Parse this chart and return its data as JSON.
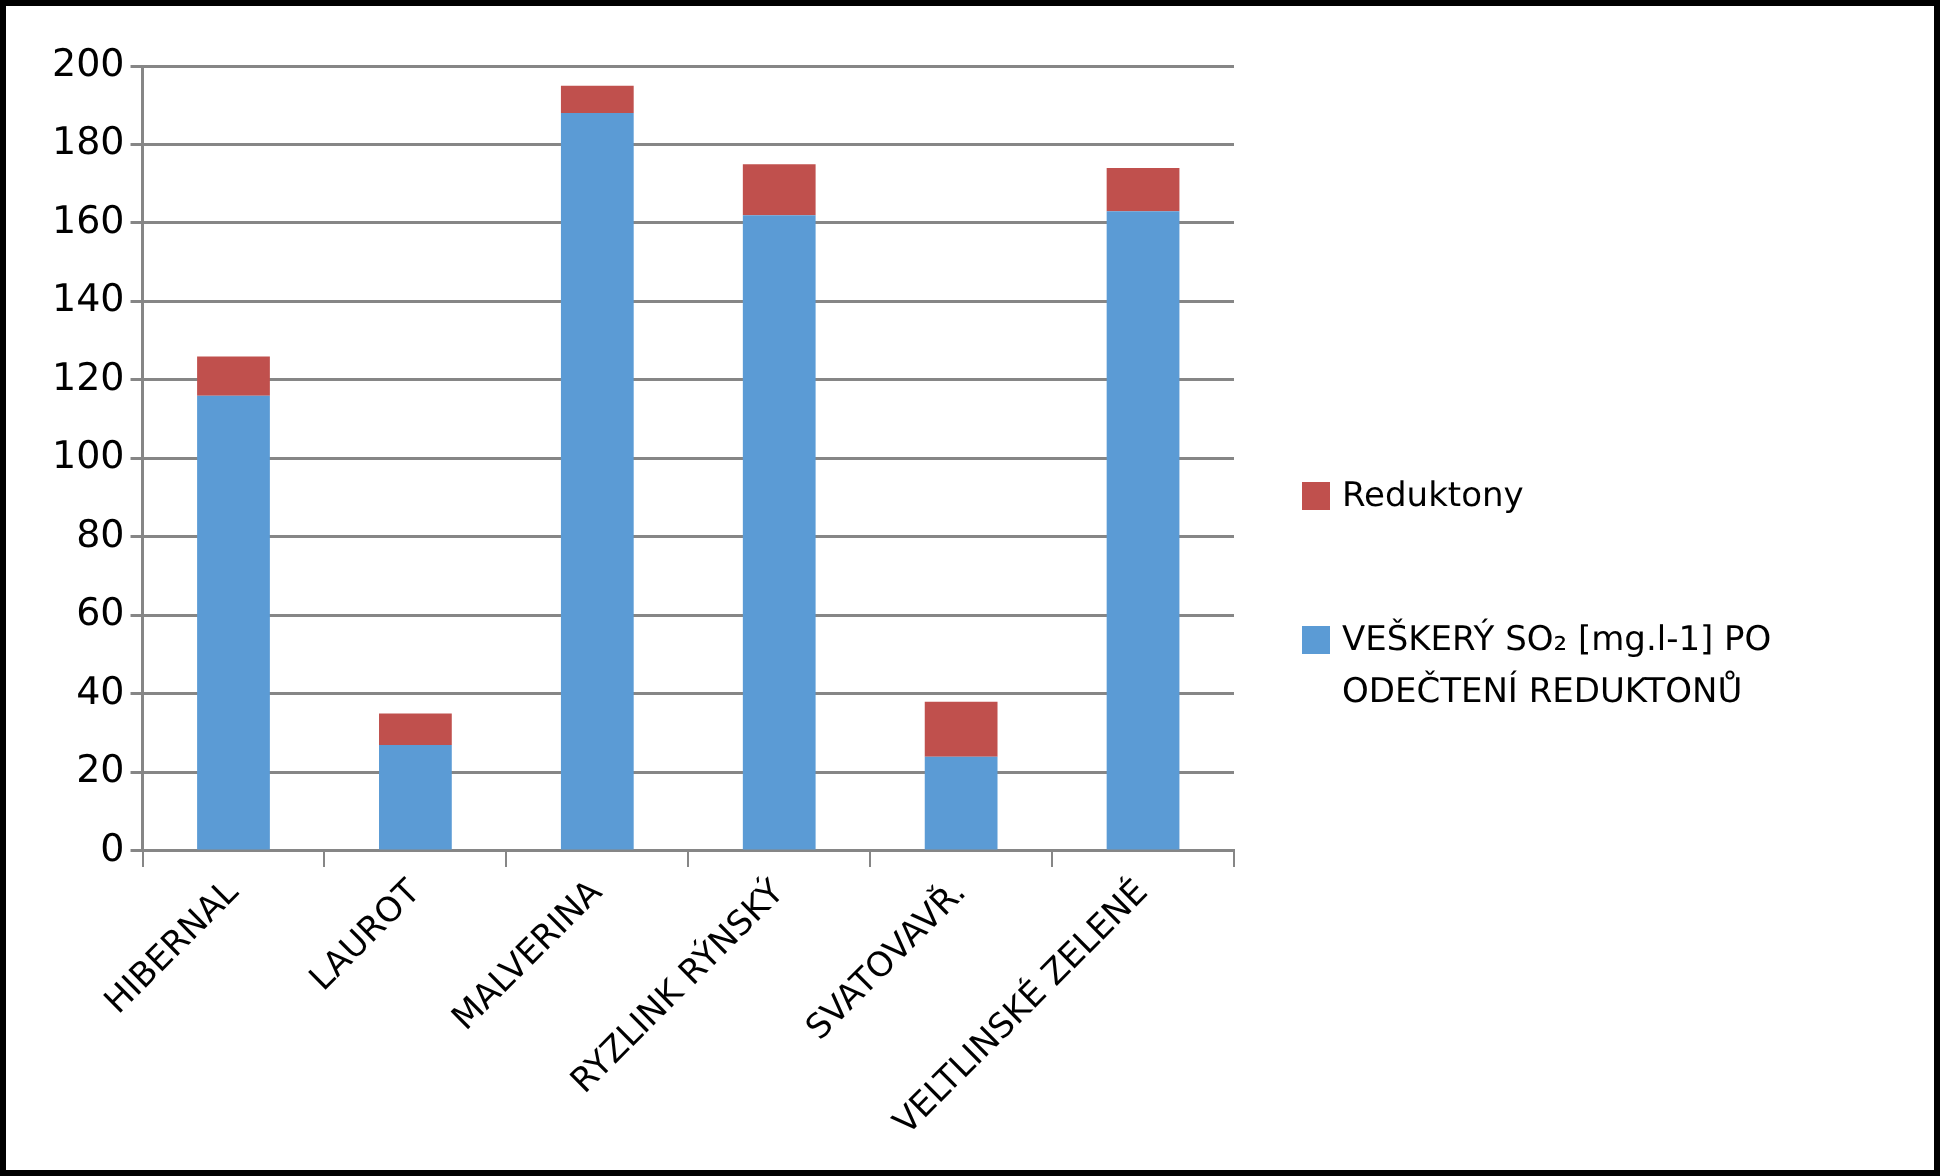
{
  "chart_data": {
    "type": "bar",
    "stacked": true,
    "categories": [
      "HIBERNAL",
      "LAUROT",
      "MALVERINA",
      "RYZLINK RÝNSKÝ",
      "SVATOVAVŘ.",
      "VELTLINSKÉ ZELENÉ"
    ],
    "series": [
      {
        "name": "VEŠKERÝ SO₂ [mg.l-1] PO ODEČTENÍ REDUKTONŮ",
        "color": "#5b9bd5",
        "values": [
          116,
          27,
          188,
          162,
          24,
          163
        ]
      },
      {
        "name": "Reduktony",
        "color": "#c0504d",
        "values": [
          10,
          8,
          7,
          13,
          14,
          11
        ]
      }
    ],
    "ylim": [
      0,
      200
    ],
    "yticks": [
      0,
      20,
      40,
      60,
      80,
      100,
      120,
      140,
      160,
      180,
      200
    ],
    "grid": "y",
    "legend": "right"
  }
}
